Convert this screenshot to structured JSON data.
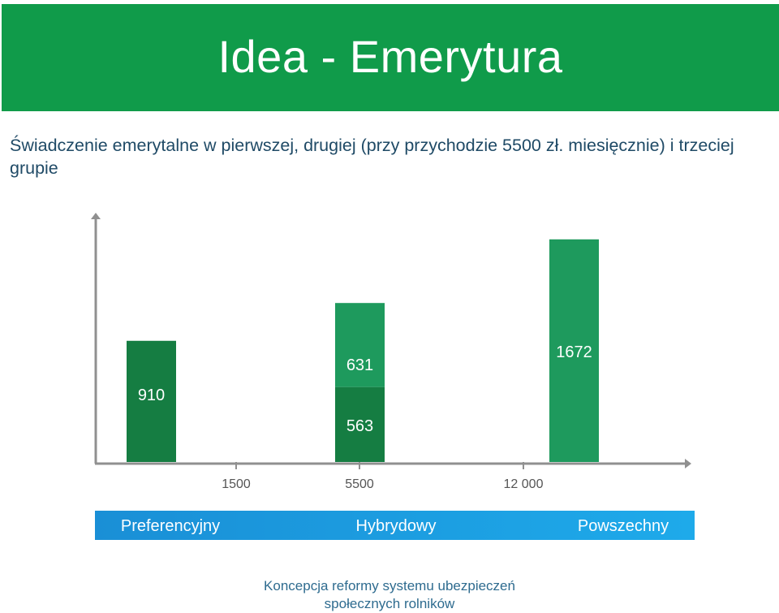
{
  "slide": {
    "title": "Idea - Emerytura",
    "subtitle": "Świadczenie emerytalne w pierwszej, drugiej (przy przychodzie 5500 zł. miesięcznie) i trzeciej grupie",
    "footer_line1": "Koncepcja reformy systemu ubezpieczeń",
    "footer_line2": "społecznych rolników"
  },
  "colors": {
    "header": "#109b4a",
    "bar_light": "#1e9a5d",
    "bar_dark": "#157d42",
    "axis": "#909090",
    "band_start": "#1a8fd6",
    "band_end": "#1eaaea",
    "label_text": "#ffffff",
    "tick_text": "#555555"
  },
  "chart_data": {
    "type": "bar",
    "x_ticks": [
      "1500",
      "5500",
      "12 000"
    ],
    "bars": [
      {
        "x_position": "1500",
        "segments": [
          {
            "label": "910",
            "value": 910,
            "shade": "dark"
          }
        ]
      },
      {
        "x_position": "5500",
        "segments": [
          {
            "label": "563",
            "value": 563,
            "shade": "dark"
          },
          {
            "label": "631",
            "value": 631,
            "shade": "light"
          }
        ]
      },
      {
        "x_position": "12 000",
        "segments": [
          {
            "label": "1672",
            "value": 1672,
            "shade": "light"
          }
        ]
      }
    ],
    "categories": [
      "Preferencyjny",
      "Hybrydowy",
      "Powszechny"
    ],
    "ylim": [
      0,
      1872
    ],
    "grid": false
  }
}
